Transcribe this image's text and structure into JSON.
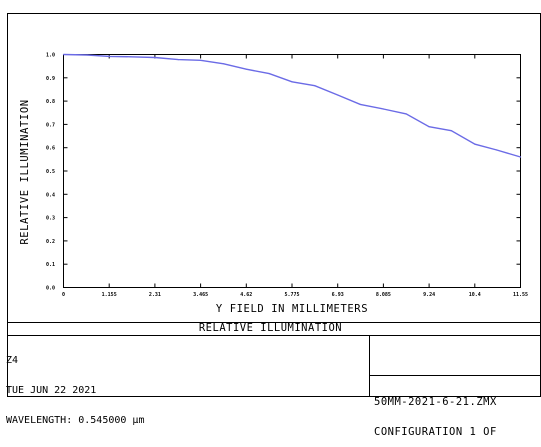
{
  "chart_data": {
    "type": "line",
    "title": "",
    "xlabel": "Y FIELD IN MILLIMETERS",
    "ylabel": "RELATIVE ILLUMINATION",
    "xlim": [
      0,
      11.55
    ],
    "ylim": [
      0,
      1.0
    ],
    "x_ticks": [
      "0",
      "1.155",
      "2.31",
      "3.465",
      "4.62",
      "5.775",
      "6.93",
      "8.085",
      "9.24",
      "10.4",
      "11.55"
    ],
    "y_ticks": [
      "0.0",
      "0.1",
      "0.2",
      "0.3",
      "0.4",
      "0.5",
      "0.6",
      "0.7",
      "0.8",
      "0.9",
      "1.0"
    ],
    "grid": false,
    "series": [
      {
        "color": "#6b6be6",
        "x": [
          0,
          0.6,
          1.155,
          1.7,
          2.31,
          2.9,
          3.465,
          4.05,
          4.62,
          5.2,
          5.775,
          6.35,
          6.93,
          7.5,
          8.085,
          8.66,
          9.24,
          9.8,
          10.4,
          10.95,
          11.55
        ],
        "y": [
          1.0,
          0.998,
          0.992,
          0.99,
          0.987,
          0.978,
          0.975,
          0.96,
          0.937,
          0.918,
          0.883,
          0.866,
          0.826,
          0.786,
          0.766,
          0.745,
          0.69,
          0.673,
          0.615,
          0.59,
          0.56
        ]
      }
    ]
  },
  "caption": "RELATIVE ILLUMINATION",
  "info_left": [
    "Z4",
    "TUE JUN 22 2021",
    "WAVELENGTH: 0.545000 µm"
  ],
  "info_right": [
    "50MM-2021-6-21.ZMX",
    "CONFIGURATION 1 OF"
  ],
  "colors": {
    "line": "#6b6be6",
    "axes": "#000000",
    "background": "#ffffff"
  }
}
